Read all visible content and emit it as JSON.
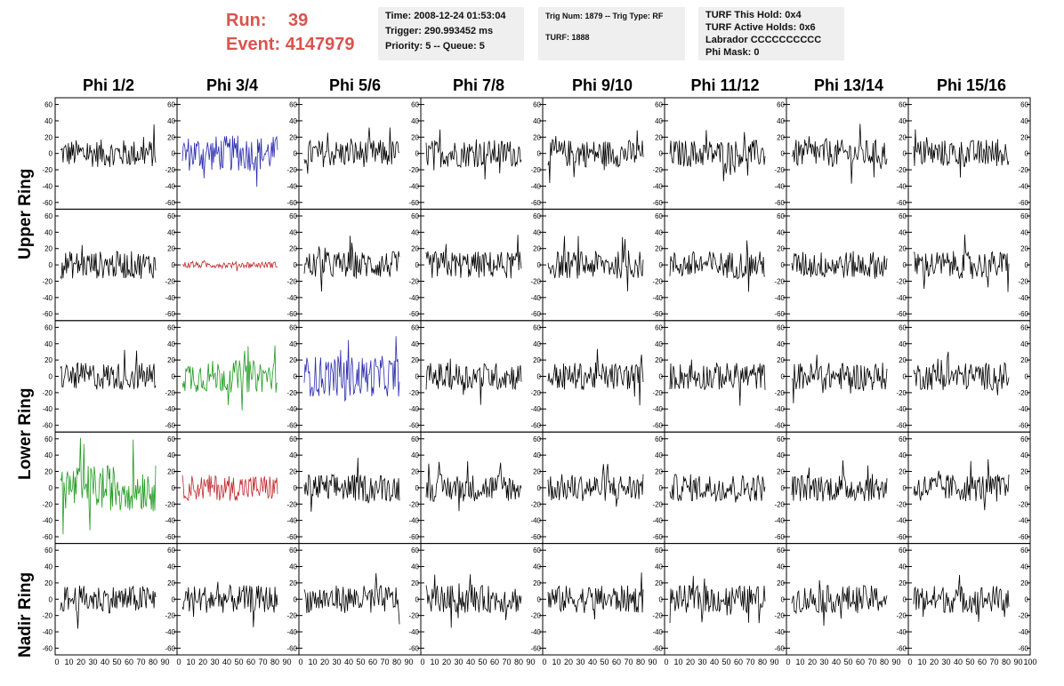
{
  "header": {
    "run_label": "Run:",
    "run_value": "39",
    "event_label": "Event:",
    "event_value": "4147979"
  },
  "info_box_1": {
    "time": "Time: 2008-12-24 01:53:04",
    "trigger": "Trigger: 290.993452 ms",
    "priority": "Priority: 5 -- Queue: 5"
  },
  "info_box_2": {
    "trig": "Trig Num: 1879 -- Trig Type: RF",
    "turf": "TURF: 1888"
  },
  "info_box_3": {
    "hold": "TURF This Hold: 0x4",
    "active": "TURF Active Holds: 0x6",
    "labrador": "Labrador CCCCCCCCCC",
    "phimask": "Phi Mask: 0"
  },
  "columns": [
    "Phi 1/2",
    "Phi 3/4",
    "Phi 5/6",
    "Phi 7/8",
    "Phi 9/10",
    "Phi 11/12",
    "Phi 13/14",
    "Phi 15/16"
  ],
  "rings": [
    "Upper Ring",
    "Lower Ring",
    "Nadir Ring"
  ],
  "colors": {
    "normal": "#000000",
    "blue": "#2b2bb0",
    "red": "#c0272d",
    "green": "#1f9a1f"
  },
  "chart_data": {
    "type": "line",
    "grid": "8 columns x 5 rows of waveform panels",
    "xlim": [
      0,
      100
    ],
    "ylim": [
      -65,
      65
    ],
    "x_ticks": [
      0,
      10,
      20,
      30,
      40,
      50,
      60,
      70,
      80,
      90,
      100
    ],
    "y_ticks": [
      -60,
      -40,
      -20,
      0,
      20,
      40,
      60
    ],
    "panels_highlight": [
      {
        "row": 0,
        "col": 1,
        "color": "blue",
        "amp": 22
      },
      {
        "row": 1,
        "col": 1,
        "color": "red",
        "amp": 4
      },
      {
        "row": 2,
        "col": 1,
        "color": "green",
        "amp": 20
      },
      {
        "row": 2,
        "col": 2,
        "color": "blue",
        "amp": 25
      },
      {
        "row": 3,
        "col": 0,
        "color": "green",
        "amp": 28
      },
      {
        "row": 3,
        "col": 1,
        "color": "red",
        "amp": 16
      }
    ],
    "default_amp": 17
  }
}
